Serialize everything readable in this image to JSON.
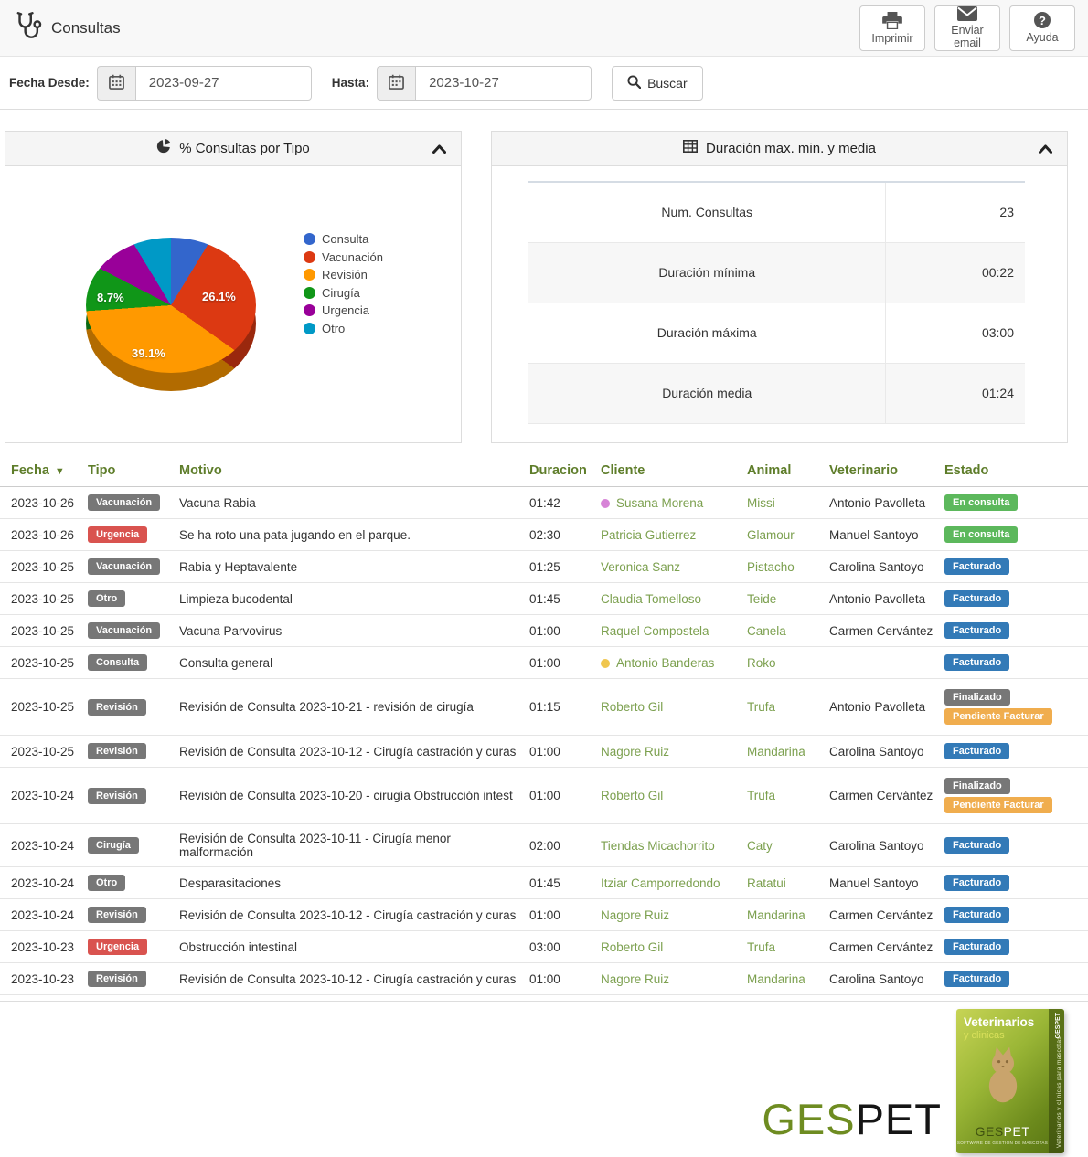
{
  "colors": {
    "accent_olive": "#5e7d2a",
    "link_green": "#7ca04f",
    "badge": {
      "gray": "#777777",
      "red": "#d9534f",
      "green": "#5cb85c",
      "blue": "#337ab7",
      "orange": "#f0ad4e"
    }
  },
  "header": {
    "title": "Consultas",
    "buttons": [
      {
        "label": "Imprimir",
        "icon": "printer-icon"
      },
      {
        "label": "Enviar email",
        "icon": "envelope-icon"
      },
      {
        "label": "Ayuda",
        "icon": "question-icon"
      }
    ]
  },
  "filters": {
    "from_label": "Fecha Desde:",
    "from_value": "2023-09-27",
    "to_label": "Hasta:",
    "to_value": "2023-10-27",
    "search_label": "Buscar"
  },
  "pie_panel": {
    "title": "% Consultas por Tipo"
  },
  "chart_data": {
    "type": "pie",
    "style": "3d",
    "title": "% Consultas por Tipo",
    "labels": [
      "Consulta",
      "Vacunación",
      "Revisión",
      "Cirugía",
      "Urgencia",
      "Otro"
    ],
    "values": [
      8.7,
      26.1,
      39.1,
      8.7,
      8.7,
      8.7
    ],
    "colors": [
      "#3366cc",
      "#dc3912",
      "#ff9900",
      "#109618",
      "#990099",
      "#0099c6"
    ],
    "visible_labels": [
      {
        "slice": "Cirugía",
        "text": "8.7%"
      },
      {
        "slice": "Vacunación",
        "text": "26.1%"
      },
      {
        "slice": "Revisión",
        "text": "39.1%"
      }
    ],
    "legend_position": "right"
  },
  "duration_panel": {
    "title": "Duración max. min. y media",
    "rows": [
      {
        "label": "Num. Consultas",
        "value": "23"
      },
      {
        "label": "Duración mínima",
        "value": "00:22"
      },
      {
        "label": "Duración máxima",
        "value": "03:00"
      },
      {
        "label": "Duración media",
        "value": "01:24"
      }
    ]
  },
  "table": {
    "columns": [
      "Fecha",
      "Tipo",
      "Motivo",
      "Duracion",
      "Cliente",
      "Animal",
      "Veterinario",
      "Estado"
    ],
    "sorted_column": "Fecha",
    "rows": [
      {
        "date": "2023-10-26",
        "type": "Vacunación",
        "type_color": "gray",
        "motivo": "Vacuna Rabia",
        "duracion": "01:42",
        "cliente": "Susana Morena",
        "dot": "#d783d7",
        "animal": "Missi",
        "veterinario": "Antonio Pavolleta",
        "estados": [
          {
            "label": "En consulta",
            "color": "green"
          }
        ]
      },
      {
        "date": "2023-10-26",
        "type": "Urgencia",
        "type_color": "red",
        "motivo": "Se ha roto una pata jugando en el parque.",
        "duracion": "02:30",
        "cliente": "Patricia Gutierrez",
        "dot": null,
        "animal": "Glamour",
        "veterinario": "Manuel Santoyo",
        "estados": [
          {
            "label": "En consulta",
            "color": "green"
          }
        ]
      },
      {
        "date": "2023-10-25",
        "type": "Vacunación",
        "type_color": "gray",
        "motivo": "Rabia y Heptavalente",
        "duracion": "01:25",
        "cliente": "Veronica Sanz",
        "dot": null,
        "animal": "Pistacho",
        "veterinario": "Carolina Santoyo",
        "estados": [
          {
            "label": "Facturado",
            "color": "blue"
          }
        ]
      },
      {
        "date": "2023-10-25",
        "type": "Otro",
        "type_color": "gray",
        "motivo": "Limpieza bucodental",
        "duracion": "01:45",
        "cliente": "Claudia Tomelloso",
        "dot": null,
        "animal": "Teide",
        "veterinario": "Antonio Pavolleta",
        "estados": [
          {
            "label": "Facturado",
            "color": "blue"
          }
        ]
      },
      {
        "date": "2023-10-25",
        "type": "Vacunación",
        "type_color": "gray",
        "motivo": "Vacuna Parvovirus",
        "duracion": "01:00",
        "cliente": "Raquel Compostela",
        "dot": null,
        "animal": "Canela",
        "veterinario": "Carmen Cervántez",
        "estados": [
          {
            "label": "Facturado",
            "color": "blue"
          }
        ]
      },
      {
        "date": "2023-10-25",
        "type": "Consulta",
        "type_color": "gray",
        "motivo": "Consulta general",
        "duracion": "01:00",
        "cliente": "Antonio Banderas",
        "dot": "#f0c64e",
        "animal": "Roko",
        "veterinario": "",
        "estados": [
          {
            "label": "Facturado",
            "color": "blue"
          }
        ]
      },
      {
        "date": "2023-10-25",
        "type": "Revisión",
        "type_color": "gray",
        "motivo": "Revisión de Consulta 2023-10-21 - revisión de cirugía",
        "duracion": "01:15",
        "cliente": "Roberto Gil",
        "dot": null,
        "animal": "Trufa",
        "veterinario": "Antonio Pavolleta",
        "estados": [
          {
            "label": "Finalizado",
            "color": "gray"
          },
          {
            "label": "Pendiente Facturar",
            "color": "orange"
          }
        ]
      },
      {
        "date": "2023-10-25",
        "type": "Revisión",
        "type_color": "gray",
        "motivo": "Revisión de Consulta 2023-10-12 - Cirugía castración y curas",
        "duracion": "01:00",
        "cliente": "Nagore Ruiz",
        "dot": null,
        "animal": "Mandarina",
        "veterinario": "Carolina Santoyo",
        "estados": [
          {
            "label": "Facturado",
            "color": "blue"
          }
        ]
      },
      {
        "date": "2023-10-24",
        "type": "Revisión",
        "type_color": "gray",
        "motivo": "Revisión de Consulta 2023-10-20 - cirugía Obstrucción intest",
        "duracion": "01:00",
        "cliente": "Roberto Gil",
        "dot": null,
        "animal": "Trufa",
        "veterinario": "Carmen Cervántez",
        "estados": [
          {
            "label": "Finalizado",
            "color": "gray"
          },
          {
            "label": "Pendiente Facturar",
            "color": "orange"
          }
        ]
      },
      {
        "date": "2023-10-24",
        "type": "Cirugía",
        "type_color": "gray",
        "motivo": "Revisión de Consulta 2023-10-11 - Cirugía menor malformación",
        "duracion": "02:00",
        "cliente": "Tiendas Micachorrito",
        "dot": null,
        "animal": "Caty",
        "veterinario": "Carolina Santoyo",
        "estados": [
          {
            "label": "Facturado",
            "color": "blue"
          }
        ]
      },
      {
        "date": "2023-10-24",
        "type": "Otro",
        "type_color": "gray",
        "motivo": "Desparasitaciones",
        "duracion": "01:45",
        "cliente": "Itziar Camporredondo",
        "dot": null,
        "animal": "Ratatui",
        "veterinario": "Manuel Santoyo",
        "estados": [
          {
            "label": "Facturado",
            "color": "blue"
          }
        ]
      },
      {
        "date": "2023-10-24",
        "type": "Revisión",
        "type_color": "gray",
        "motivo": "Revisión de Consulta 2023-10-12 - Cirugía castración y curas",
        "duracion": "01:00",
        "cliente": "Nagore Ruiz",
        "dot": null,
        "animal": "Mandarina",
        "veterinario": "Carmen Cervántez",
        "estados": [
          {
            "label": "Facturado",
            "color": "blue"
          }
        ]
      },
      {
        "date": "2023-10-23",
        "type": "Urgencia",
        "type_color": "red",
        "motivo": "Obstrucción intestinal",
        "duracion": "03:00",
        "cliente": "Roberto Gil",
        "dot": null,
        "animal": "Trufa",
        "veterinario": "Carmen Cervántez",
        "estados": [
          {
            "label": "Facturado",
            "color": "blue"
          }
        ]
      },
      {
        "date": "2023-10-23",
        "type": "Revisión",
        "type_color": "gray",
        "motivo": "Revisión de Consulta 2023-10-12 - Cirugía castración y curas",
        "duracion": "01:00",
        "cliente": "Nagore Ruiz",
        "dot": null,
        "animal": "Mandarina",
        "veterinario": "Carolina Santoyo",
        "estados": [
          {
            "label": "Facturado",
            "color": "blue"
          }
        ]
      }
    ]
  },
  "footer": {
    "wordmark": {
      "part1": "GES",
      "part2": "PET"
    },
    "box": {
      "line1": "Veterinarios",
      "line2": "y clinicas",
      "brand1": "GES",
      "brand2": "PET",
      "tagline": "SOFTWARE DE GESTIÓN DE MASCOTAS",
      "side_brand": "GESPET",
      "side_text": "Veterinarios y clínicas para mascotas"
    }
  }
}
